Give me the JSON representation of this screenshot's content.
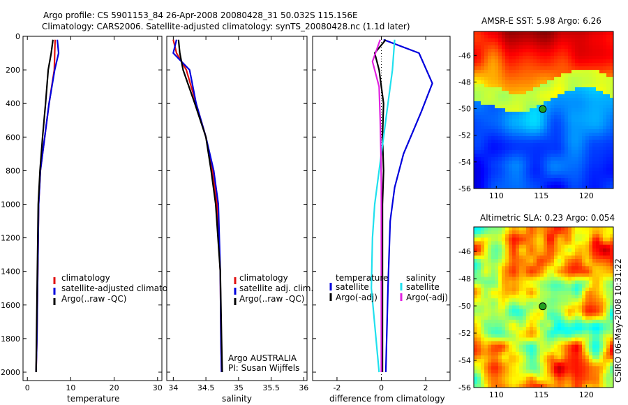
{
  "header": {
    "line1": "Argo profile: CS 5901153_84 26-Apr-2008 20080428_31 50.032S 115.156E",
    "line2": "Climatology: CARS2006. Satellite-adjusted climatology: synTS_20080428.nc (1.1d later)"
  },
  "footer_text": "CSIRO 06-May-2008 10:31:22",
  "colors": {
    "red": "#e01010",
    "blue": "#0000dd",
    "black": "#000000",
    "cyan": "#20e0ee",
    "magenta": "#e020e0"
  },
  "chart_data": [
    {
      "type": "line",
      "xlabel": "temperature",
      "xlim": [
        -1,
        31
      ],
      "ylim": [
        2050,
        0
      ],
      "xticks": [
        "0",
        "10",
        "20",
        "30"
      ],
      "yticks": [
        "0",
        "200",
        "400",
        "600",
        "800",
        "1000",
        "1200",
        "1400",
        "1600",
        "1800",
        "2000"
      ],
      "legend": [
        "climatology",
        "satellite-adjusted climatology",
        "Argo(..raw -QC)"
      ],
      "series": [
        {
          "color": "red",
          "x": [
            6.4,
            6.3,
            6.2,
            5.0,
            4.0,
            3.0,
            2.6,
            2.4,
            2.2,
            2.0
          ],
          "y": [
            20,
            100,
            200,
            400,
            600,
            800,
            1000,
            1400,
            1800,
            2000
          ]
        },
        {
          "color": "blue",
          "x": [
            6.9,
            7.2,
            6.3,
            5.0,
            4.0,
            3.0,
            2.6,
            2.4,
            2.2,
            2.0
          ],
          "y": [
            20,
            100,
            200,
            400,
            600,
            800,
            1000,
            1400,
            1800,
            2000
          ]
        },
        {
          "color": "black",
          "x": [
            5.9,
            5.5,
            4.8,
            4.2,
            3.5,
            2.9,
            2.5,
            2.3,
            2.1,
            2.0
          ],
          "y": [
            20,
            100,
            200,
            400,
            600,
            800,
            1000,
            1400,
            1800,
            2000
          ]
        }
      ]
    },
    {
      "type": "line",
      "xlabel": "salinity",
      "xlim": [
        33.9,
        36.05
      ],
      "ylim": [
        2050,
        0
      ],
      "xticks": [
        "34",
        "34.5",
        "35",
        "35.5",
        "36"
      ],
      "legend": [
        "climatology",
        "satellite adj. clim.",
        "Argo(..raw -QC)"
      ],
      "annotations": [
        "Argo AUSTRALIA",
        "PI: Susan Wijffels"
      ],
      "series": [
        {
          "color": "red",
          "x": [
            34.0,
            34.05,
            34.2,
            34.35,
            34.5,
            34.6,
            34.67,
            34.72,
            34.73,
            34.74
          ],
          "y": [
            20,
            100,
            200,
            400,
            600,
            800,
            1000,
            1400,
            1800,
            2000
          ]
        },
        {
          "color": "blue",
          "x": [
            34.05,
            34.0,
            34.25,
            34.35,
            34.5,
            34.62,
            34.69,
            34.72,
            34.73,
            34.74
          ],
          "y": [
            20,
            100,
            200,
            400,
            600,
            800,
            1000,
            1400,
            1800,
            2000
          ]
        },
        {
          "color": "black",
          "x": [
            34.08,
            34.1,
            34.15,
            34.33,
            34.5,
            34.58,
            34.65,
            34.72,
            34.74,
            34.75
          ],
          "y": [
            20,
            100,
            200,
            400,
            600,
            800,
            1000,
            1400,
            1800,
            2000
          ]
        }
      ]
    },
    {
      "type": "line",
      "xlabel": "difference from climatology",
      "xlim": [
        -3.1,
        3.1
      ],
      "ylim": [
        2050,
        0
      ],
      "xticks": [
        "-2",
        "0",
        "2"
      ],
      "legend": {
        "temperature_heading": "temperature",
        "salinity_heading": "salinity",
        "items": [
          "satellite",
          "Argo(-adj)",
          "satellite",
          "Argo(-adj)"
        ]
      },
      "series": [
        {
          "color": "blue",
          "x": [
            0.1,
            1.7,
            2.3,
            1.8,
            1.0,
            0.6,
            0.4,
            0.3,
            0.2
          ],
          "y": [
            20,
            100,
            280,
            450,
            700,
            900,
            1100,
            1500,
            2000
          ]
        },
        {
          "color": "black",
          "x": [
            0.2,
            -0.3,
            -0.1,
            0.1,
            0.05,
            0.1,
            0.05,
            0.05,
            0.05
          ],
          "y": [
            20,
            100,
            200,
            400,
            600,
            800,
            1000,
            1400,
            2000
          ]
        },
        {
          "color": "cyan",
          "x": [
            0.6,
            0.5,
            0.3,
            0.1,
            -0.1,
            -0.3,
            -0.4,
            -0.45,
            -0.1
          ],
          "y": [
            20,
            200,
            400,
            600,
            800,
            1000,
            1200,
            1500,
            2000
          ]
        },
        {
          "color": "magenta",
          "x": [
            -0.05,
            -0.4,
            -0.1,
            -0.05,
            -0.02,
            0,
            0,
            0,
            0
          ],
          "y": [
            20,
            150,
            300,
            500,
            700,
            900,
            1100,
            1500,
            2000
          ]
        }
      ]
    },
    {
      "type": "heatmap",
      "title": "AMSR-E SST: 5.98 Argo: 6.26",
      "xticks": [
        "110",
        "115",
        "120"
      ],
      "yticks": [
        "-46",
        "-48",
        "-50",
        "-52",
        "-54",
        "-56"
      ],
      "xlim": [
        107.5,
        123
      ],
      "ylim": [
        -56,
        -44.2
      ],
      "marker": [
        115.156,
        -50.032
      ]
    },
    {
      "type": "heatmap",
      "title": "Altimetric SLA: 0.23 Argo: 0.054",
      "xticks": [
        "110",
        "115",
        "120"
      ],
      "yticks": [
        "-46",
        "-48",
        "-50",
        "-52",
        "-54",
        "-56"
      ],
      "xlim": [
        107.5,
        123
      ],
      "ylim": [
        -56,
        -44.2
      ],
      "marker": [
        115.156,
        -50.032
      ]
    }
  ]
}
